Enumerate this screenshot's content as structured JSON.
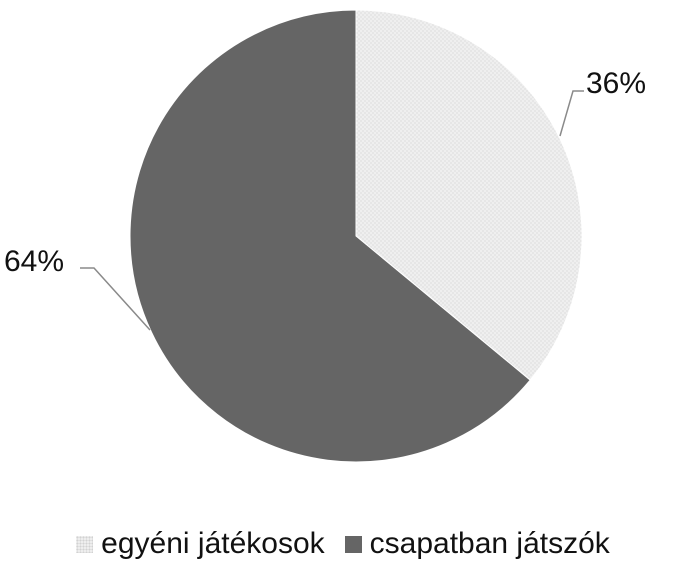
{
  "chart_data": {
    "type": "pie",
    "title": "",
    "categories": [
      "egyéni játékosok",
      "csapatban játszók"
    ],
    "values": [
      36,
      64
    ],
    "data_labels": [
      "36%",
      "64%"
    ],
    "colors": [
      "#eeeeee",
      "#656565"
    ],
    "start_angle_deg": 0,
    "direction": "clockwise",
    "legend_position": "bottom"
  }
}
